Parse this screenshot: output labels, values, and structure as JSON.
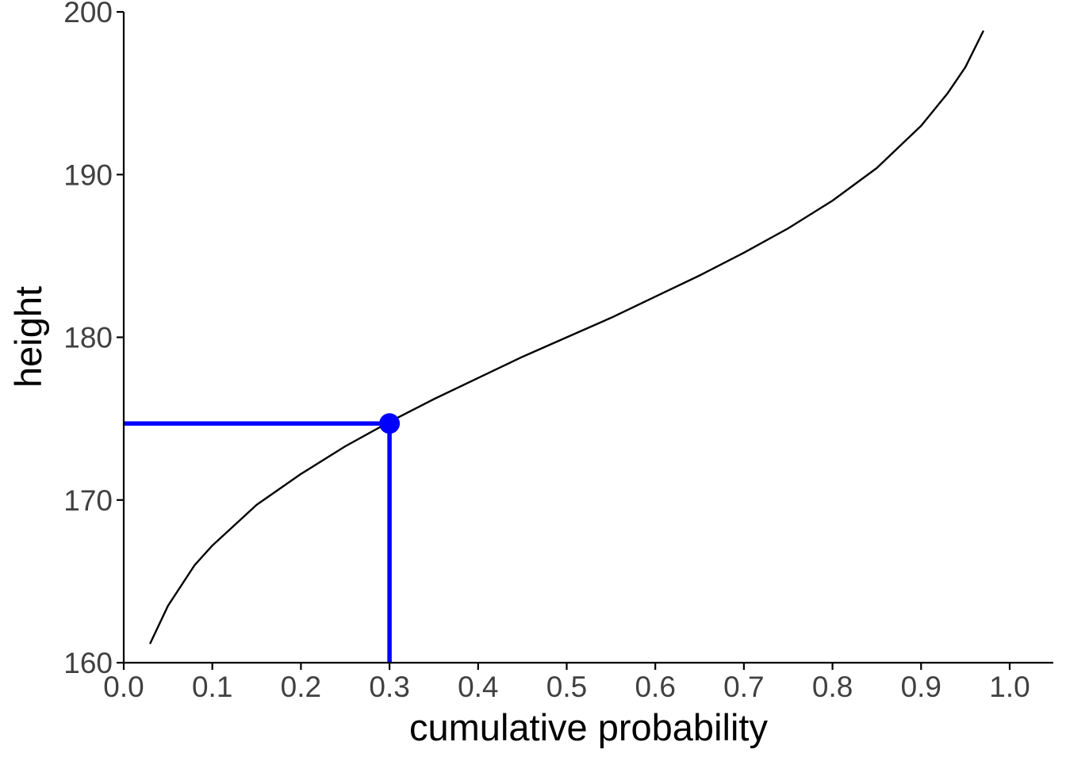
{
  "chart_data": {
    "type": "line",
    "xlabel": "cumulative probability",
    "ylabel": "height",
    "xlim": [
      0.0,
      1.05
    ],
    "ylim": [
      160,
      200
    ],
    "x_ticks": [
      "0.0",
      "0.1",
      "0.2",
      "0.3",
      "0.4",
      "0.5",
      "0.6",
      "0.7",
      "0.8",
      "0.9",
      "1.0"
    ],
    "y_ticks": [
      "160",
      "170",
      "180",
      "190",
      "200"
    ],
    "grid": false,
    "legend": "none",
    "series": [
      {
        "style": "black-line",
        "color": "#000000",
        "x": [
          0.03,
          0.05,
          0.08,
          0.1,
          0.15,
          0.2,
          0.25,
          0.3,
          0.35,
          0.4,
          0.45,
          0.5,
          0.55,
          0.6,
          0.65,
          0.7,
          0.75,
          0.8,
          0.85,
          0.9,
          0.93,
          0.95,
          0.97
        ],
        "y": [
          161.2,
          163.5,
          166.0,
          167.2,
          169.7,
          171.6,
          173.3,
          174.8,
          176.2,
          177.5,
          178.8,
          180.0,
          181.2,
          182.5,
          183.8,
          185.2,
          186.7,
          188.4,
          190.4,
          193.0,
          195.0,
          196.6,
          198.8
        ]
      }
    ],
    "annotation": {
      "color": "#0000ff",
      "point": {
        "x": 0.3,
        "y": 174.7
      },
      "horizontal_segment": {
        "x_from": 0.0,
        "x_to": 0.3,
        "y": 174.7
      },
      "vertical_segment": {
        "x": 0.3,
        "y_from": 160,
        "y_to": 174.7
      }
    }
  }
}
